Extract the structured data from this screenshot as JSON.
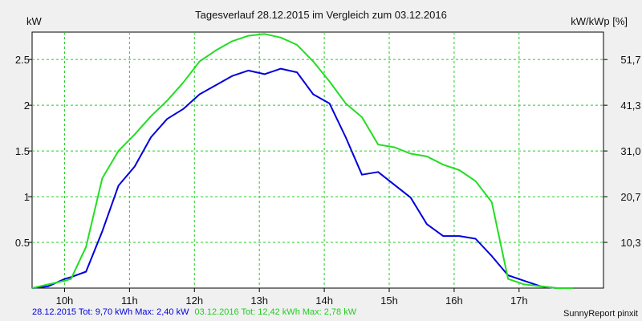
{
  "chart_data": {
    "type": "line",
    "title": "Tagesverlauf 28.12.2015 im Vergleich zum 03.12.2016",
    "ylabel_left": "kW",
    "ylabel_right": "kW/kWp [%]",
    "xlim": [
      9.5,
      18.3
    ],
    "ylim": [
      0,
      2.8
    ],
    "grid": true,
    "x_ticks": [
      {
        "value": 10,
        "label": "10h"
      },
      {
        "value": 11,
        "label": "11h"
      },
      {
        "value": 12,
        "label": "12h"
      },
      {
        "value": 13,
        "label": "13h"
      },
      {
        "value": 14,
        "label": "14h"
      },
      {
        "value": 15,
        "label": "15h"
      },
      {
        "value": 16,
        "label": "16h"
      },
      {
        "value": 17,
        "label": "17h"
      }
    ],
    "y_ticks_left": [
      {
        "value": 0.5,
        "label": "0.5"
      },
      {
        "value": 1,
        "label": "1"
      },
      {
        "value": 1.5,
        "label": "1.5"
      },
      {
        "value": 2,
        "label": "2"
      },
      {
        "value": 2.5,
        "label": "2.5"
      }
    ],
    "y_ticks_right": [
      {
        "value": 0.5,
        "label": "10,3"
      },
      {
        "value": 1,
        "label": "20,7"
      },
      {
        "value": 1.5,
        "label": "31,0"
      },
      {
        "value": 2,
        "label": "41,3"
      },
      {
        "value": 2.5,
        "label": "51,7"
      }
    ],
    "series": [
      {
        "color": "#0000dd",
        "points": [
          [
            9.5,
            0.0
          ],
          [
            9.75,
            0.02
          ],
          [
            10.0,
            0.1
          ],
          [
            10.1,
            0.12
          ],
          [
            10.33,
            0.18
          ],
          [
            10.58,
            0.62
          ],
          [
            10.83,
            1.12
          ],
          [
            11.08,
            1.33
          ],
          [
            11.33,
            1.65
          ],
          [
            11.58,
            1.85
          ],
          [
            11.83,
            1.96
          ],
          [
            12.08,
            2.12
          ],
          [
            12.33,
            2.22
          ],
          [
            12.58,
            2.32
          ],
          [
            12.83,
            2.38
          ],
          [
            13.08,
            2.34
          ],
          [
            13.33,
            2.4
          ],
          [
            13.58,
            2.36
          ],
          [
            13.83,
            2.12
          ],
          [
            14.08,
            2.02
          ],
          [
            14.33,
            1.65
          ],
          [
            14.58,
            1.24
          ],
          [
            14.83,
            1.27
          ],
          [
            15.08,
            1.13
          ],
          [
            15.33,
            0.99
          ],
          [
            15.58,
            0.7
          ],
          [
            15.83,
            0.57
          ],
          [
            16.08,
            0.57
          ],
          [
            16.33,
            0.54
          ],
          [
            16.58,
            0.35
          ],
          [
            16.83,
            0.14
          ],
          [
            17.08,
            0.08
          ],
          [
            17.33,
            0.02
          ],
          [
            17.58,
            0.0
          ],
          [
            17.83,
            0.0
          ]
        ]
      },
      {
        "color": "#22dd22",
        "points": [
          [
            9.5,
            0.0
          ],
          [
            9.75,
            0.04
          ],
          [
            10.0,
            0.08
          ],
          [
            10.1,
            0.1
          ],
          [
            10.33,
            0.45
          ],
          [
            10.58,
            1.2
          ],
          [
            10.83,
            1.5
          ],
          [
            11.08,
            1.68
          ],
          [
            11.33,
            1.88
          ],
          [
            11.58,
            2.05
          ],
          [
            11.83,
            2.25
          ],
          [
            12.08,
            2.48
          ],
          [
            12.33,
            2.6
          ],
          [
            12.58,
            2.7
          ],
          [
            12.83,
            2.76
          ],
          [
            13.08,
            2.78
          ],
          [
            13.33,
            2.74
          ],
          [
            13.58,
            2.66
          ],
          [
            13.83,
            2.48
          ],
          [
            14.08,
            2.26
          ],
          [
            14.33,
            2.02
          ],
          [
            14.58,
            1.87
          ],
          [
            14.83,
            1.57
          ],
          [
            15.08,
            1.54
          ],
          [
            15.33,
            1.47
          ],
          [
            15.58,
            1.44
          ],
          [
            15.83,
            1.35
          ],
          [
            16.08,
            1.29
          ],
          [
            16.33,
            1.17
          ],
          [
            16.58,
            0.94
          ],
          [
            16.83,
            0.1
          ],
          [
            17.08,
            0.04
          ],
          [
            17.33,
            0.02
          ],
          [
            17.58,
            0.0
          ],
          [
            17.83,
            0.0
          ]
        ]
      }
    ]
  },
  "footer": {
    "series1_text": "28.12.2015 Tot: 9,70 kWh Max: 2,40 kW",
    "series1_color": "#0000dd",
    "series2_text": "03.12.2016 Tot: 12,42 kWh Max: 2,78 kW",
    "series2_color": "#22cc22",
    "credit": "SunnyReport pinxit"
  }
}
